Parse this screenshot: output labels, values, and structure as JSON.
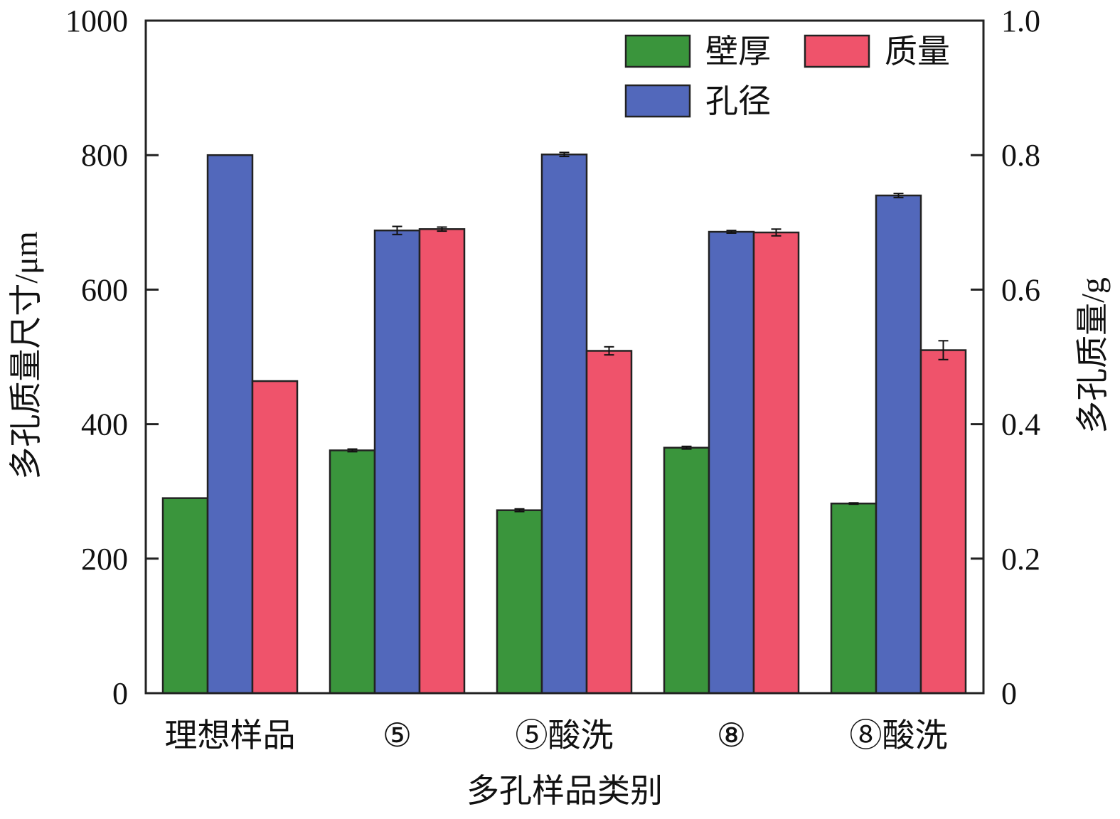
{
  "chart_data": {
    "type": "bar",
    "xlabel": "多孔样品类别",
    "ylabel": "多孔质量尺寸/μm",
    "ylabel_right": "多孔质量/g",
    "ylim": [
      0,
      1000
    ],
    "ylim_right": [
      0,
      1.0
    ],
    "yticks": [
      "0",
      "200",
      "400",
      "600",
      "800",
      "1000"
    ],
    "yticks_right": [
      "0",
      "0.2",
      "0.4",
      "0.6",
      "0.8",
      "1.0"
    ],
    "grid": false,
    "legend_position": "top-right",
    "categories": [
      "理想样品",
      "⑤",
      "⑤酸洗",
      "⑧",
      "⑧酸洗"
    ],
    "series": [
      {
        "name": "壁厚",
        "axis": "left",
        "color": "#3a953c",
        "values": [
          290,
          361,
          272,
          365,
          282
        ],
        "errors": [
          0,
          2,
          2,
          2,
          1
        ]
      },
      {
        "name": "孔径",
        "axis": "left",
        "color": "#5268bb",
        "values": [
          800,
          688,
          801,
          686,
          740
        ],
        "errors": [
          0,
          6,
          3,
          2,
          3
        ]
      },
      {
        "name": "质量",
        "axis": "right",
        "color": "#ef536b",
        "values": [
          0.464,
          0.69,
          0.509,
          0.685,
          0.51
        ],
        "errors": [
          0,
          0.003,
          0.006,
          0.005,
          0.014
        ]
      }
    ]
  }
}
